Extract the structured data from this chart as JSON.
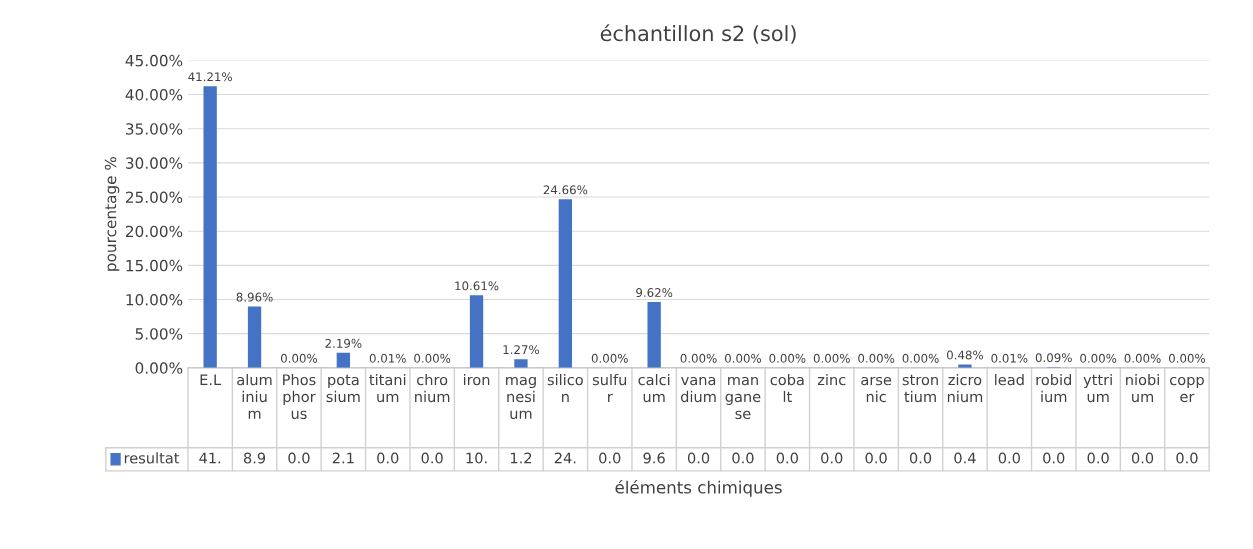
{
  "chart_data": {
    "type": "bar",
    "title": "échantillon s2 (sol)",
    "xlabel": "éléments chimiques",
    "ylabel": "pourcentage %",
    "categories": [
      "E.L",
      "aluminium",
      "Phosphorus",
      "potasium",
      "titanium",
      "chronium",
      "iron",
      "magnesium",
      "silicon",
      "sulfur",
      "calcium",
      "vanadium",
      "manganese",
      "cobalt",
      "zinc",
      "arsenic",
      "strontium",
      "zicronium",
      "lead",
      "robidium",
      "yttrium",
      "niobium",
      "copper"
    ],
    "series": [
      {
        "name": "resultat",
        "color": "#4472c4",
        "values": [
          41.21,
          8.96,
          0.0,
          2.19,
          0.01,
          0.0,
          10.61,
          1.27,
          24.66,
          0.0,
          9.62,
          0.0,
          0.0,
          0.0,
          0.0,
          0.0,
          0.0,
          0.48,
          0.01,
          0.09,
          0.0,
          0.0,
          0.0
        ],
        "value_labels": [
          "41.21%",
          "8.96%",
          "0.00%",
          "2.19%",
          "0.01%",
          "0.00%",
          "10.61%",
          "1.27%",
          "24.66%",
          "0.00%",
          "9.62%",
          "0.00%",
          "0.00%",
          "0.00%",
          "0.00%",
          "0.00%",
          "0.00%",
          "0.48%",
          "0.01%",
          "0.09%",
          "0.00%",
          "0.00%",
          "0.00%"
        ]
      }
    ],
    "ylim": [
      0,
      45
    ],
    "yticks": [
      {
        "value": 0,
        "label": "0.00%"
      },
      {
        "value": 5,
        "label": "5.00%"
      },
      {
        "value": 10,
        "label": "10.00%"
      },
      {
        "value": 15,
        "label": "15.00%"
      },
      {
        "value": 20,
        "label": "20.00%"
      },
      {
        "value": 25,
        "label": "25.00%"
      },
      {
        "value": 30,
        "label": "30.00%"
      },
      {
        "value": 35,
        "label": "35.00%"
      },
      {
        "value": 40,
        "label": "40.00%"
      },
      {
        "value": 45,
        "label": "45.00%"
      }
    ],
    "grid": "y",
    "legend": "bottom left",
    "annotations": [
      "41.",
      "8.9",
      "0.0",
      "2.1",
      "0.0",
      "0.0",
      "10.",
      "1.2",
      "24.",
      "0.0",
      "9.6",
      "0.0",
      "0.0",
      "0.0",
      "0.0",
      "0.0",
      "0.0",
      "0.4",
      "0.0",
      "0.0",
      "0.0",
      "0.0",
      "0.0"
    ]
  }
}
